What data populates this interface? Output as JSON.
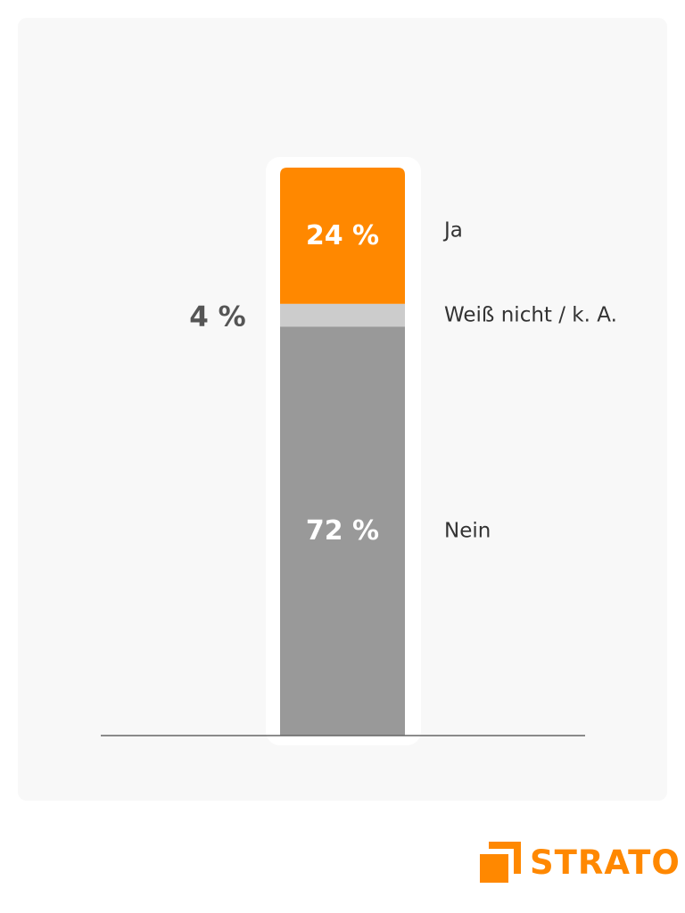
{
  "chart_data": {
    "type": "bar",
    "stacked": true,
    "segments": [
      {
        "name": "Ja",
        "value": 24,
        "label": "24 %",
        "color": "#ff8800",
        "label_position": "inside"
      },
      {
        "name": "Weiß nicht / k. A.",
        "value": 4,
        "label": "4 %",
        "color": "#cccccc",
        "label_position": "outside-left"
      },
      {
        "name": "Nein",
        "value": 72,
        "label": "72 %",
        "color": "#999999",
        "label_position": "inside"
      }
    ],
    "title": "",
    "xlabel": "",
    "ylabel": "",
    "ylim": [
      0,
      100
    ],
    "grid": false,
    "legend": "right"
  },
  "brand": {
    "name": "STRATO",
    "color": "#ff8800",
    "icon": "strato-logo-icon"
  },
  "colors": {
    "background": "#f8f8f8",
    "baseline": "#666666"
  }
}
